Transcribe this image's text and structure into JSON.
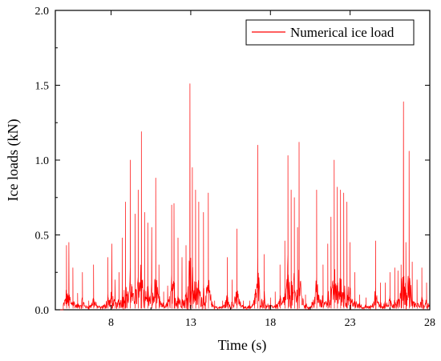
{
  "chart_data": {
    "type": "line",
    "xlabel": "Time (s)",
    "ylabel": "Ice loads (kN)",
    "xlim": [
      4.5,
      28
    ],
    "ylim": [
      0,
      2.0
    ],
    "x_ticks": [
      "8",
      "13",
      "18",
      "23",
      "28"
    ],
    "y_ticks": [
      "0.0",
      "0.5",
      "1.0",
      "1.5",
      "2.0"
    ],
    "grid": false,
    "legend_position": "top-right",
    "series": [
      {
        "name": "Numerical ice load",
        "color": "#ff0000",
        "peaks": [
          [
            5.2,
            0.43
          ],
          [
            5.35,
            0.45
          ],
          [
            5.6,
            0.28
          ],
          [
            5.9,
            0.11
          ],
          [
            6.2,
            0.25
          ],
          [
            6.6,
            0.06
          ],
          [
            6.9,
            0.3
          ],
          [
            7.5,
            0.03
          ],
          [
            7.8,
            0.35
          ],
          [
            8.05,
            0.44
          ],
          [
            8.25,
            0.2
          ],
          [
            8.5,
            0.25
          ],
          [
            8.7,
            0.48
          ],
          [
            8.9,
            0.72
          ],
          [
            9.2,
            1.0
          ],
          [
            9.5,
            0.64
          ],
          [
            9.7,
            0.8
          ],
          [
            9.9,
            1.19
          ],
          [
            10.1,
            0.65
          ],
          [
            10.3,
            0.58
          ],
          [
            10.55,
            0.55
          ],
          [
            10.8,
            0.88
          ],
          [
            11.0,
            0.3
          ],
          [
            11.3,
            0.12
          ],
          [
            11.55,
            0.16
          ],
          [
            11.8,
            0.7
          ],
          [
            11.95,
            0.71
          ],
          [
            12.2,
            0.48
          ],
          [
            12.45,
            0.35
          ],
          [
            12.7,
            0.43
          ],
          [
            12.95,
            1.51
          ],
          [
            13.1,
            0.95
          ],
          [
            13.3,
            0.8
          ],
          [
            13.5,
            0.72
          ],
          [
            13.8,
            0.65
          ],
          [
            14.1,
            0.78
          ],
          [
            14.5,
            0.06
          ],
          [
            15.0,
            0.06
          ],
          [
            15.3,
            0.35
          ],
          [
            15.6,
            0.2
          ],
          [
            15.9,
            0.54
          ],
          [
            16.3,
            0.06
          ],
          [
            16.7,
            0.06
          ],
          [
            17.0,
            0.08
          ],
          [
            17.2,
            1.1
          ],
          [
            17.6,
            0.37
          ],
          [
            18.0,
            0.08
          ],
          [
            18.3,
            0.12
          ],
          [
            18.6,
            0.3
          ],
          [
            18.9,
            0.46
          ],
          [
            19.1,
            1.03
          ],
          [
            19.3,
            0.8
          ],
          [
            19.5,
            0.75
          ],
          [
            19.7,
            0.55
          ],
          [
            19.8,
            1.12
          ],
          [
            20.2,
            0.1
          ],
          [
            20.6,
            0.05
          ],
          [
            20.9,
            0.8
          ],
          [
            21.3,
            0.3
          ],
          [
            21.6,
            0.44
          ],
          [
            21.8,
            0.62
          ],
          [
            22.0,
            1.0
          ],
          [
            22.2,
            0.82
          ],
          [
            22.4,
            0.8
          ],
          [
            22.6,
            0.78
          ],
          [
            22.8,
            0.72
          ],
          [
            23.0,
            0.45
          ],
          [
            23.3,
            0.25
          ],
          [
            23.6,
            0.1
          ],
          [
            24.0,
            0.08
          ],
          [
            24.6,
            0.46
          ],
          [
            24.9,
            0.18
          ],
          [
            25.2,
            0.18
          ],
          [
            25.5,
            0.25
          ],
          [
            25.8,
            0.28
          ],
          [
            26.0,
            0.26
          ],
          [
            26.2,
            0.3
          ],
          [
            26.35,
            1.39
          ],
          [
            26.5,
            0.45
          ],
          [
            26.7,
            1.06
          ],
          [
            26.9,
            0.32
          ],
          [
            27.2,
            0.2
          ],
          [
            27.5,
            0.28
          ],
          [
            27.8,
            0.18
          ]
        ]
      }
    ]
  }
}
